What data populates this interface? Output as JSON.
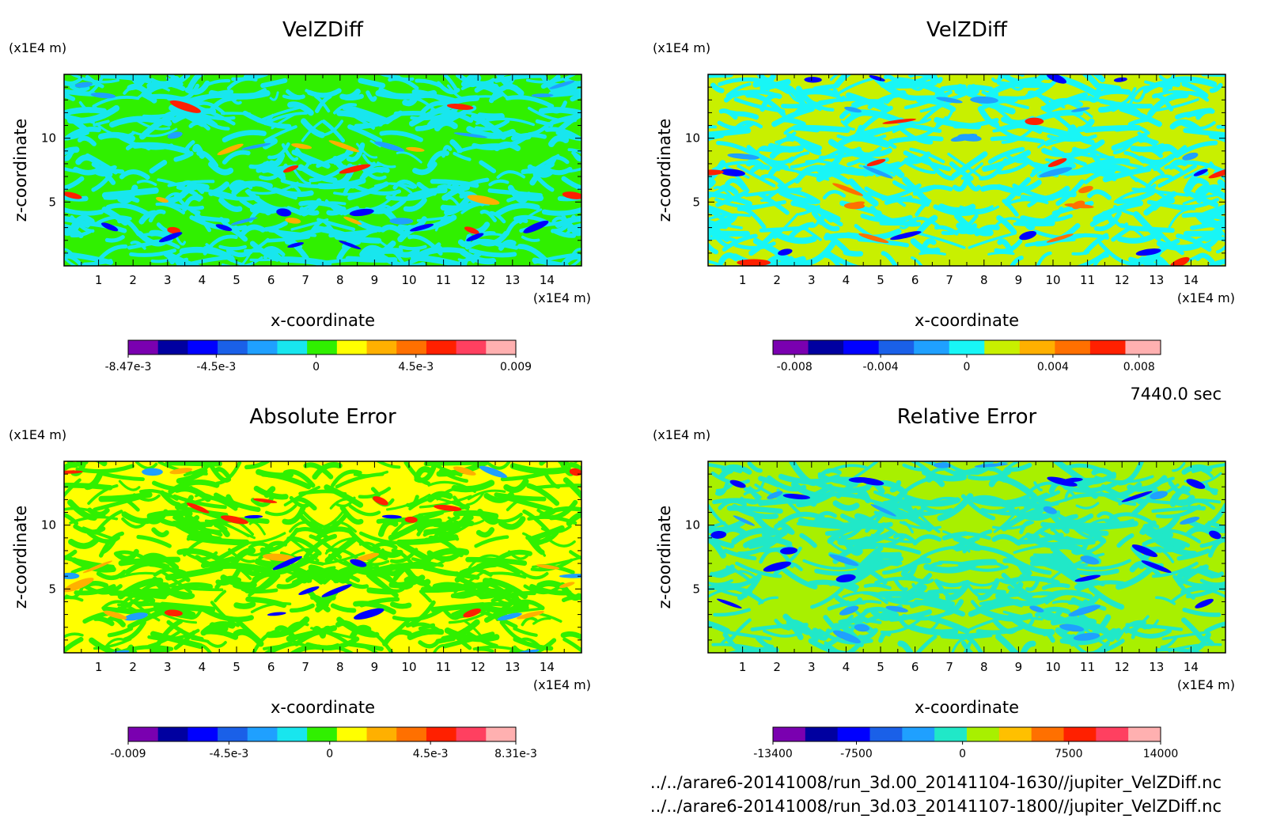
{
  "figure": {
    "time_label": "7440.0 sec",
    "file_paths": [
      "../../arare6-20141008/run_3d.00_20141104-1630//jupiter_VelZDiff.nc",
      "../../arare6-20141008/run_3d.03_20141107-1800//jupiter_VelZDiff.nc"
    ]
  },
  "chart_data": [
    {
      "type": "heatmap",
      "title": "VelZDiff",
      "xlabel": "x-coordinate",
      "ylabel": "z-coordinate",
      "x_unit": "(x1E4 m)",
      "y_unit": "(x1E4 m)",
      "xlim": [
        0,
        15
      ],
      "ylim": [
        0,
        15
      ],
      "x_ticks": [
        "1",
        "2",
        "3",
        "4",
        "5",
        "6",
        "7",
        "8",
        "9",
        "10",
        "11",
        "12",
        "13",
        "14"
      ],
      "y_ticks": [
        "5",
        "10"
      ],
      "colorbar": {
        "range": [
          -0.00847,
          0.009
        ],
        "colors": [
          "#7a00b0",
          "#0000a0",
          "#0000ff",
          "#1a60e8",
          "#1fa0ff",
          "#18e6ee",
          "#30f000",
          "#ffff00",
          "#ffb000",
          "#ff7000",
          "#ff2000",
          "#ff4060",
          "#ffb0b0"
        ],
        "tick_labels": [
          "-8.47e-3",
          "-4.5e-3",
          "0",
          "4.5e-3",
          "0.009"
        ]
      },
      "field_colors": [
        "#30f000",
        "#18e6ee"
      ],
      "accent_colors": [
        "#1fa0ff",
        "#0000ff",
        "#ffb000",
        "#ff2000"
      ]
    },
    {
      "type": "heatmap",
      "title": "VelZDiff",
      "xlabel": "x-coordinate",
      "ylabel": "z-coordinate",
      "x_unit": "(x1E4 m)",
      "y_unit": "(x1E4 m)",
      "xlim": [
        0,
        15
      ],
      "ylim": [
        0,
        15
      ],
      "x_ticks": [
        "1",
        "2",
        "3",
        "4",
        "5",
        "6",
        "7",
        "8",
        "9",
        "10",
        "11",
        "12",
        "13",
        "14"
      ],
      "y_ticks": [
        "5",
        "10"
      ],
      "colorbar": {
        "range": [
          -0.009,
          0.009
        ],
        "colors": [
          "#7a00b0",
          "#0000a0",
          "#0000ff",
          "#1a60e8",
          "#1fa0ff",
          "#18f6f6",
          "#c8f000",
          "#ffb000",
          "#ff7000",
          "#ff2000",
          "#ffb0b0"
        ],
        "tick_labels": [
          "-0.008",
          "-0.004",
          "0",
          "0.004",
          "0.008"
        ]
      },
      "field_colors": [
        "#c8f000",
        "#18f6f6"
      ],
      "accent_colors": [
        "#1fa0ff",
        "#0000ff",
        "#ff7000",
        "#ff2000"
      ]
    },
    {
      "type": "heatmap",
      "title": "Absolute Error",
      "xlabel": "x-coordinate",
      "ylabel": "z-coordinate",
      "x_unit": "(x1E4 m)",
      "y_unit": "(x1E4 m)",
      "xlim": [
        0,
        15
      ],
      "ylim": [
        0,
        15
      ],
      "x_ticks": [
        "1",
        "2",
        "3",
        "4",
        "5",
        "6",
        "7",
        "8",
        "9",
        "10",
        "11",
        "12",
        "13",
        "14"
      ],
      "y_ticks": [
        "5",
        "10"
      ],
      "colorbar": {
        "range": [
          -0.009,
          0.00831
        ],
        "colors": [
          "#7a00b0",
          "#0000a0",
          "#0000ff",
          "#1a60e8",
          "#1fa0ff",
          "#18e6ee",
          "#30f000",
          "#ffff00",
          "#ffb000",
          "#ff7000",
          "#ff2000",
          "#ff4060",
          "#ffb0b0"
        ],
        "tick_labels": [
          "-0.009",
          "-4.5e-3",
          "0",
          "4.5e-3",
          "8.31e-3"
        ]
      },
      "field_colors": [
        "#ffff00",
        "#30f000"
      ],
      "accent_colors": [
        "#ffb000",
        "#ff2000",
        "#1fa0ff",
        "#0000ff"
      ]
    },
    {
      "type": "heatmap",
      "title": "Relative Error",
      "xlabel": "x-coordinate",
      "ylabel": "z-coordinate",
      "x_unit": "(x1E4 m)",
      "y_unit": "(x1E4 m)",
      "xlim": [
        0,
        15
      ],
      "ylim": [
        0,
        15
      ],
      "x_ticks": [
        "1",
        "2",
        "3",
        "4",
        "5",
        "6",
        "7",
        "8",
        "9",
        "10",
        "11",
        "12",
        "13",
        "14"
      ],
      "y_ticks": [
        "5",
        "10"
      ],
      "colorbar": {
        "range": [
          -13400,
          14000
        ],
        "colors": [
          "#7a00b0",
          "#0000a0",
          "#0000ff",
          "#1a60e8",
          "#1fa0ff",
          "#20e8c8",
          "#a8f000",
          "#ffc000",
          "#ff7000",
          "#ff2000",
          "#ff4060",
          "#ffb0b0"
        ],
        "tick_labels": [
          "-13400",
          "-7500",
          "0",
          "7500",
          "14000"
        ]
      },
      "field_colors": [
        "#a8f000",
        "#20e8c8"
      ],
      "accent_colors": [
        "#1fa0ff",
        "#0000ff"
      ]
    }
  ]
}
